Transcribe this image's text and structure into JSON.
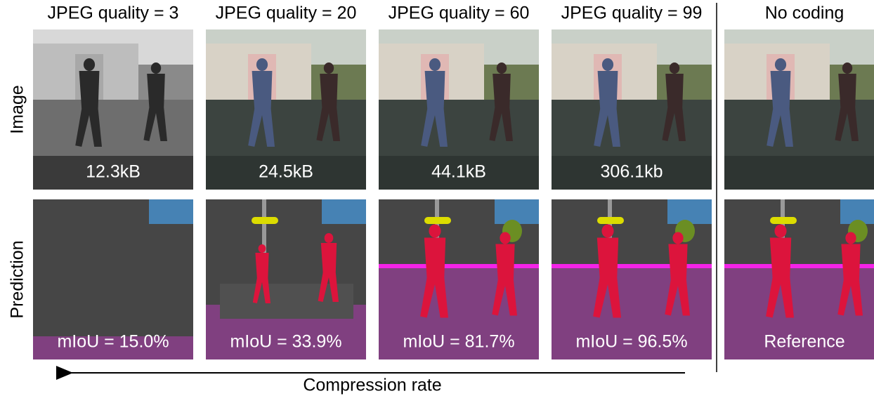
{
  "columns": [
    {
      "title": "JPEG quality = 3",
      "image_label": "12.3kB",
      "prediction_label": "mIoU = 15.0%"
    },
    {
      "title": "JPEG quality = 20",
      "image_label": "24.5kB",
      "prediction_label": "mIoU = 33.9%"
    },
    {
      "title": "JPEG quality = 60",
      "image_label": "44.1kB",
      "prediction_label": "mIoU = 81.7%"
    },
    {
      "title": "JPEG quality = 99",
      "image_label": "306.1kb",
      "prediction_label": "mIoU = 96.5%"
    },
    {
      "title": "No coding",
      "prediction_label": "Reference"
    }
  ],
  "row_labels": [
    "Image",
    "Prediction"
  ],
  "axis_label": "Compression rate"
}
